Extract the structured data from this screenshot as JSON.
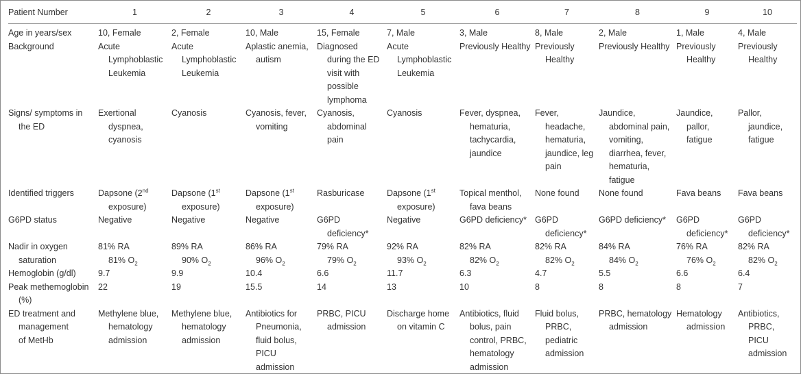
{
  "table": {
    "header": [
      "Patient Number",
      "1",
      "2",
      "3",
      "4",
      "5",
      "6",
      "7",
      "8",
      "9",
      "10"
    ],
    "rows": [
      {
        "label": [
          "Age in years/sex"
        ],
        "cells": [
          [
            "10, Female"
          ],
          [
            "2, Female"
          ],
          [
            "10, Male"
          ],
          [
            "15, Female"
          ],
          [
            "7, Male"
          ],
          [
            "3, Male"
          ],
          [
            "8, Male"
          ],
          [
            "2, Male"
          ],
          [
            "1, Male"
          ],
          [
            "4, Male"
          ]
        ]
      },
      {
        "label": [
          "Background"
        ],
        "cells": [
          [
            "Acute",
            "Lymphoblastic",
            "Leukemia"
          ],
          [
            "Acute",
            "Lymphoblastic",
            "Leukemia"
          ],
          [
            "Aplastic anemia,",
            "autism"
          ],
          [
            "Diagnosed",
            "during the ED",
            "visit with",
            "possible",
            "lymphoma"
          ],
          [
            "Acute",
            "Lymphoblastic",
            "Leukemia"
          ],
          [
            "Previously Healthy"
          ],
          [
            "Previously",
            "Healthy"
          ],
          [
            "Previously Healthy"
          ],
          [
            "Previously",
            "Healthy"
          ],
          [
            "Previously",
            "Healthy"
          ]
        ]
      },
      {
        "label": [
          "Signs/ symptoms in",
          "the ED"
        ],
        "cells": [
          [
            "Exertional",
            "dyspnea,",
            "cyanosis"
          ],
          [
            "Cyanosis"
          ],
          [
            "Cyanosis, fever,",
            "vomiting"
          ],
          [
            "Cyanosis,",
            "abdominal",
            "pain"
          ],
          [
            "Cyanosis"
          ],
          [
            "Fever, dyspnea,",
            "hematuria,",
            "tachycardia,",
            "jaundice"
          ],
          [
            "Fever,",
            "headache,",
            "hematuria,",
            "jaundice, leg",
            "pain"
          ],
          [
            "Jaundice,",
            "abdominal pain,",
            "vomiting,",
            "diarrhea, fever,",
            "hematuria,",
            "fatigue"
          ],
          [
            "Jaundice,",
            "pallor,",
            "fatigue"
          ],
          [
            "Pallor,",
            "jaundice,",
            "fatigue"
          ]
        ]
      },
      {
        "label": [
          "Identified triggers"
        ],
        "cells": [
          [
            [
              "Dapsone (2",
              {
                "sup": "nd"
              }
            ],
            "exposure)"
          ],
          [
            [
              "Dapsone (1",
              {
                "sup": "st"
              }
            ],
            "exposure)"
          ],
          [
            [
              "Dapsone (1",
              {
                "sup": "st"
              }
            ],
            "exposure)"
          ],
          [
            "Rasburicase"
          ],
          [
            [
              "Dapsone (1",
              {
                "sup": "st"
              }
            ],
            "exposure)"
          ],
          [
            "Topical menthol,",
            "fava beans"
          ],
          [
            "None found"
          ],
          [
            "None found"
          ],
          [
            "Fava beans"
          ],
          [
            "Fava beans"
          ]
        ]
      },
      {
        "label": [
          "G6PD status"
        ],
        "cells": [
          [
            "Negative"
          ],
          [
            "Negative"
          ],
          [
            "Negative"
          ],
          [
            "G6PD",
            "deficiency*"
          ],
          [
            "Negative"
          ],
          [
            "G6PD deficiency*"
          ],
          [
            "G6PD",
            "deficiency*"
          ],
          [
            "G6PD deficiency*"
          ],
          [
            "G6PD",
            "deficiency*"
          ],
          [
            "G6PD",
            "deficiency*"
          ]
        ]
      },
      {
        "label": [
          "Nadir in oxygen",
          "saturation"
        ],
        "cells": [
          [
            "81% RA",
            [
              "81% O",
              {
                "sub": "2"
              }
            ]
          ],
          [
            "89% RA",
            [
              "90% O",
              {
                "sub": "2"
              }
            ]
          ],
          [
            "86% RA",
            [
              "96% O",
              {
                "sub": "2"
              }
            ]
          ],
          [
            "79% RA",
            [
              "79% O",
              {
                "sub": "2"
              }
            ]
          ],
          [
            "92% RA",
            [
              "93% O",
              {
                "sub": "2"
              }
            ]
          ],
          [
            "82% RA",
            [
              "82% O",
              {
                "sub": "2"
              }
            ]
          ],
          [
            "82% RA",
            [
              "82% O",
              {
                "sub": "2"
              }
            ]
          ],
          [
            "84% RA",
            [
              "84% O",
              {
                "sub": "2"
              }
            ]
          ],
          [
            "76% RA",
            [
              "76% O",
              {
                "sub": "2"
              }
            ]
          ],
          [
            "82% RA",
            [
              "82% O",
              {
                "sub": "2"
              }
            ]
          ]
        ]
      },
      {
        "label": [
          "Hemoglobin (g/dl)"
        ],
        "cells": [
          [
            9.7
          ],
          [
            9.9
          ],
          [
            10.4
          ],
          [
            6.6
          ],
          [
            11.7
          ],
          [
            6.3
          ],
          [
            4.7
          ],
          [
            5.5
          ],
          [
            6.6
          ],
          [
            6.4
          ]
        ]
      },
      {
        "label": [
          "Peak methemoglobin",
          "(%)"
        ],
        "cells": [
          [
            22
          ],
          [
            19
          ],
          [
            15.5
          ],
          [
            14
          ],
          [
            13
          ],
          [
            10
          ],
          [
            8
          ],
          [
            8
          ],
          [
            8
          ],
          [
            7
          ]
        ]
      },
      {
        "label": [
          "ED treatment and",
          "management",
          "of MetHb"
        ],
        "cells": [
          [
            "Methylene blue,",
            "hematology",
            "admission"
          ],
          [
            "Methylene blue,",
            "hematology",
            "admission"
          ],
          [
            "Antibiotics for",
            "Pneumonia,",
            "fluid bolus,",
            "PICU",
            "admission"
          ],
          [
            "PRBC, PICU",
            "admission"
          ],
          [
            "Discharge home",
            "on vitamin C"
          ],
          [
            "Antibiotics, fluid",
            "bolus, pain",
            "control, PRBC,",
            "hematology",
            "admission"
          ],
          [
            "Fluid bolus,",
            "PRBC,",
            "pediatric",
            "admission"
          ],
          [
            "PRBC, hematology",
            "admission"
          ],
          [
            "Hematology",
            "admission"
          ],
          [
            "Antibiotics,",
            "PRBC,",
            "PICU",
            "admission"
          ]
        ]
      }
    ]
  }
}
